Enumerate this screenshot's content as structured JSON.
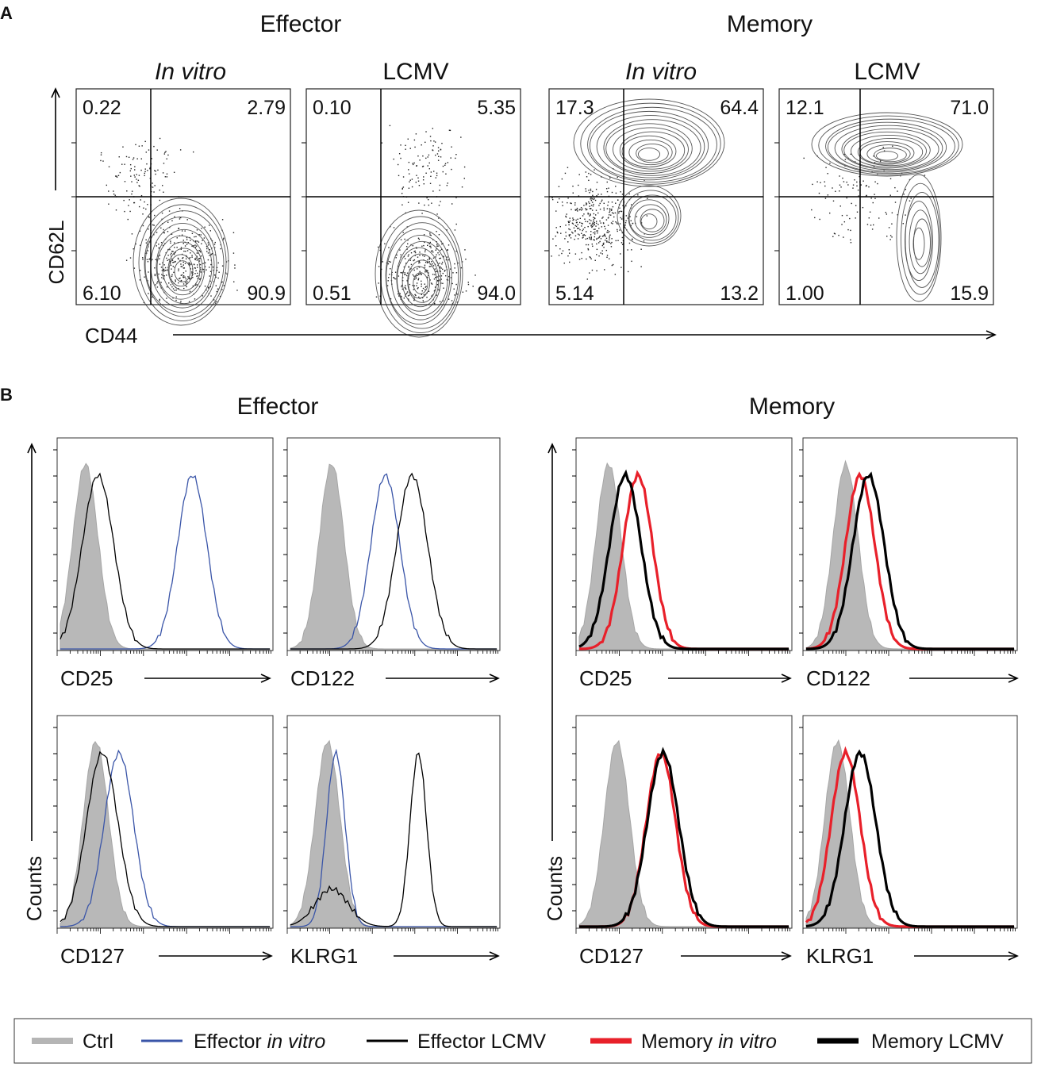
{
  "panel_a": {
    "label": "A",
    "group_titles": {
      "effector": "Effector",
      "memory": "Memory"
    },
    "y_axis_label": "CD62L",
    "x_axis_label": "CD44",
    "plots": [
      {
        "title": "In vitro",
        "italic": true,
        "q_ul": "0.22",
        "q_ur": "2.79",
        "q_ll": "6.10",
        "q_lr": "90.9"
      },
      {
        "title": "LCMV",
        "italic": false,
        "q_ul": "0.10",
        "q_ur": "5.35",
        "q_ll": "0.51",
        "q_lr": "94.0"
      },
      {
        "title": "In vitro",
        "italic": true,
        "q_ul": "17.3",
        "q_ur": "64.4",
        "q_ll": "5.14",
        "q_lr": "13.2"
      },
      {
        "title": "LCMV",
        "italic": false,
        "q_ul": "12.1",
        "q_ur": "71.0",
        "q_ll": "1.00",
        "q_lr": "15.9"
      }
    ]
  },
  "panel_b": {
    "label": "B",
    "group_titles": {
      "effector": "Effector",
      "memory": "Memory"
    },
    "y_axis_label": "Counts",
    "markers": {
      "effector": [
        "CD25",
        "CD122",
        "CD127",
        "KLRG1"
      ],
      "memory": [
        "CD25",
        "CD122",
        "CD127",
        "KLRG1"
      ]
    },
    "histogram_peaks_relative_position": {
      "effector": {
        "CD25": {
          "ctrl": 0.12,
          "in_vitro": 0.63,
          "lcmv": 0.18
        },
        "CD122": {
          "ctrl": 0.2,
          "in_vitro": 0.46,
          "lcmv": 0.59
        },
        "CD127": {
          "ctrl": 0.17,
          "in_vitro": 0.28,
          "lcmv": 0.2
        },
        "KLRG1": {
          "ctrl": 0.18,
          "in_vitro": 0.22,
          "lcmv": 0.62
        }
      },
      "memory": {
        "CD25": {
          "ctrl": 0.14,
          "in_vitro": 0.28,
          "lcmv": 0.22
        },
        "CD122": {
          "ctrl": 0.19,
          "in_vitro": 0.26,
          "lcmv": 0.3
        },
        "CD127": {
          "ctrl": 0.18,
          "in_vitro": 0.39,
          "lcmv": 0.4
        },
        "KLRG1": {
          "ctrl": 0.15,
          "in_vitro": 0.19,
          "lcmv": 0.26
        }
      }
    }
  },
  "legend": [
    {
      "pre": "Ctrl",
      "italic": "",
      "post": "",
      "color": "#b5b5b5",
      "kind": "fill"
    },
    {
      "pre": "Effector ",
      "italic": "in vitro",
      "post": "",
      "color": "#3a55a8",
      "kind": "thin"
    },
    {
      "pre": "Effector LCMV",
      "italic": "",
      "post": "",
      "color": "#000000",
      "kind": "thin"
    },
    {
      "pre": "Memory ",
      "italic": "in vitro",
      "post": "",
      "color": "#e8202a",
      "kind": "thick"
    },
    {
      "pre": "Memory LCMV",
      "italic": "",
      "post": "",
      "color": "#000000",
      "kind": "thick"
    }
  ]
}
